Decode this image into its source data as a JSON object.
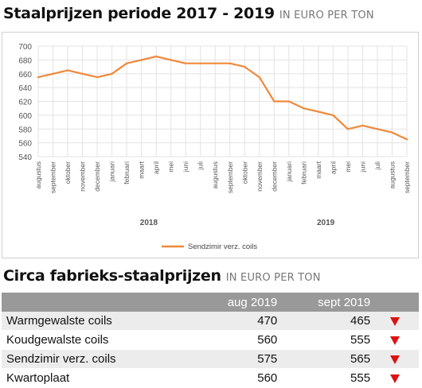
{
  "header": {
    "title": "Staalprijzen periode 2017 - 2019",
    "unit": "IN EURO PER TON"
  },
  "chart_data": {
    "type": "line",
    "categories": [
      "augustus",
      "september",
      "oktober",
      "november",
      "december",
      "januari",
      "februari",
      "maart",
      "april",
      "mei",
      "juni",
      "juli",
      "augustus",
      "september",
      "oktober",
      "november",
      "december",
      "januari",
      "februari",
      "maart",
      "april",
      "mei",
      "juni",
      "juli",
      "augustus",
      "september"
    ],
    "year_labels": [
      {
        "label": "2018",
        "start_index": 5
      },
      {
        "label": "2019",
        "start_index": 17
      }
    ],
    "series": [
      {
        "name": "Sendzimir verz. coils",
        "values": [
          655,
          660,
          665,
          660,
          655,
          660,
          675,
          680,
          685,
          680,
          675,
          675,
          675,
          675,
          670,
          655,
          620,
          620,
          610,
          605,
          600,
          580,
          585,
          580,
          575,
          565
        ]
      }
    ],
    "yticks": [
      540,
      560,
      580,
      600,
      620,
      640,
      660,
      680,
      700
    ],
    "ylim": [
      540,
      700
    ],
    "grid": true,
    "legend": "bottom-center",
    "series_color": "#f0893a"
  },
  "table": {
    "headers": [
      "",
      "aug 2019",
      "sept 2019",
      ""
    ],
    "rows": [
      {
        "name": "Warmgewalste coils",
        "aug": "470",
        "sep": "465",
        "trend": "down"
      },
      {
        "name": "Koudgewalste coils",
        "aug": "560",
        "sep": "555",
        "trend": "down"
      },
      {
        "name": "Sendzimir verz. coils",
        "aug": "575",
        "sep": "565",
        "trend": "down"
      },
      {
        "name": "Kwartoplaat",
        "aug": "560",
        "sep": "555",
        "trend": "down"
      }
    ]
  },
  "section2": {
    "title": "Circa fabrieks-staalprijzen",
    "unit": "IN EURO PER TON"
  }
}
